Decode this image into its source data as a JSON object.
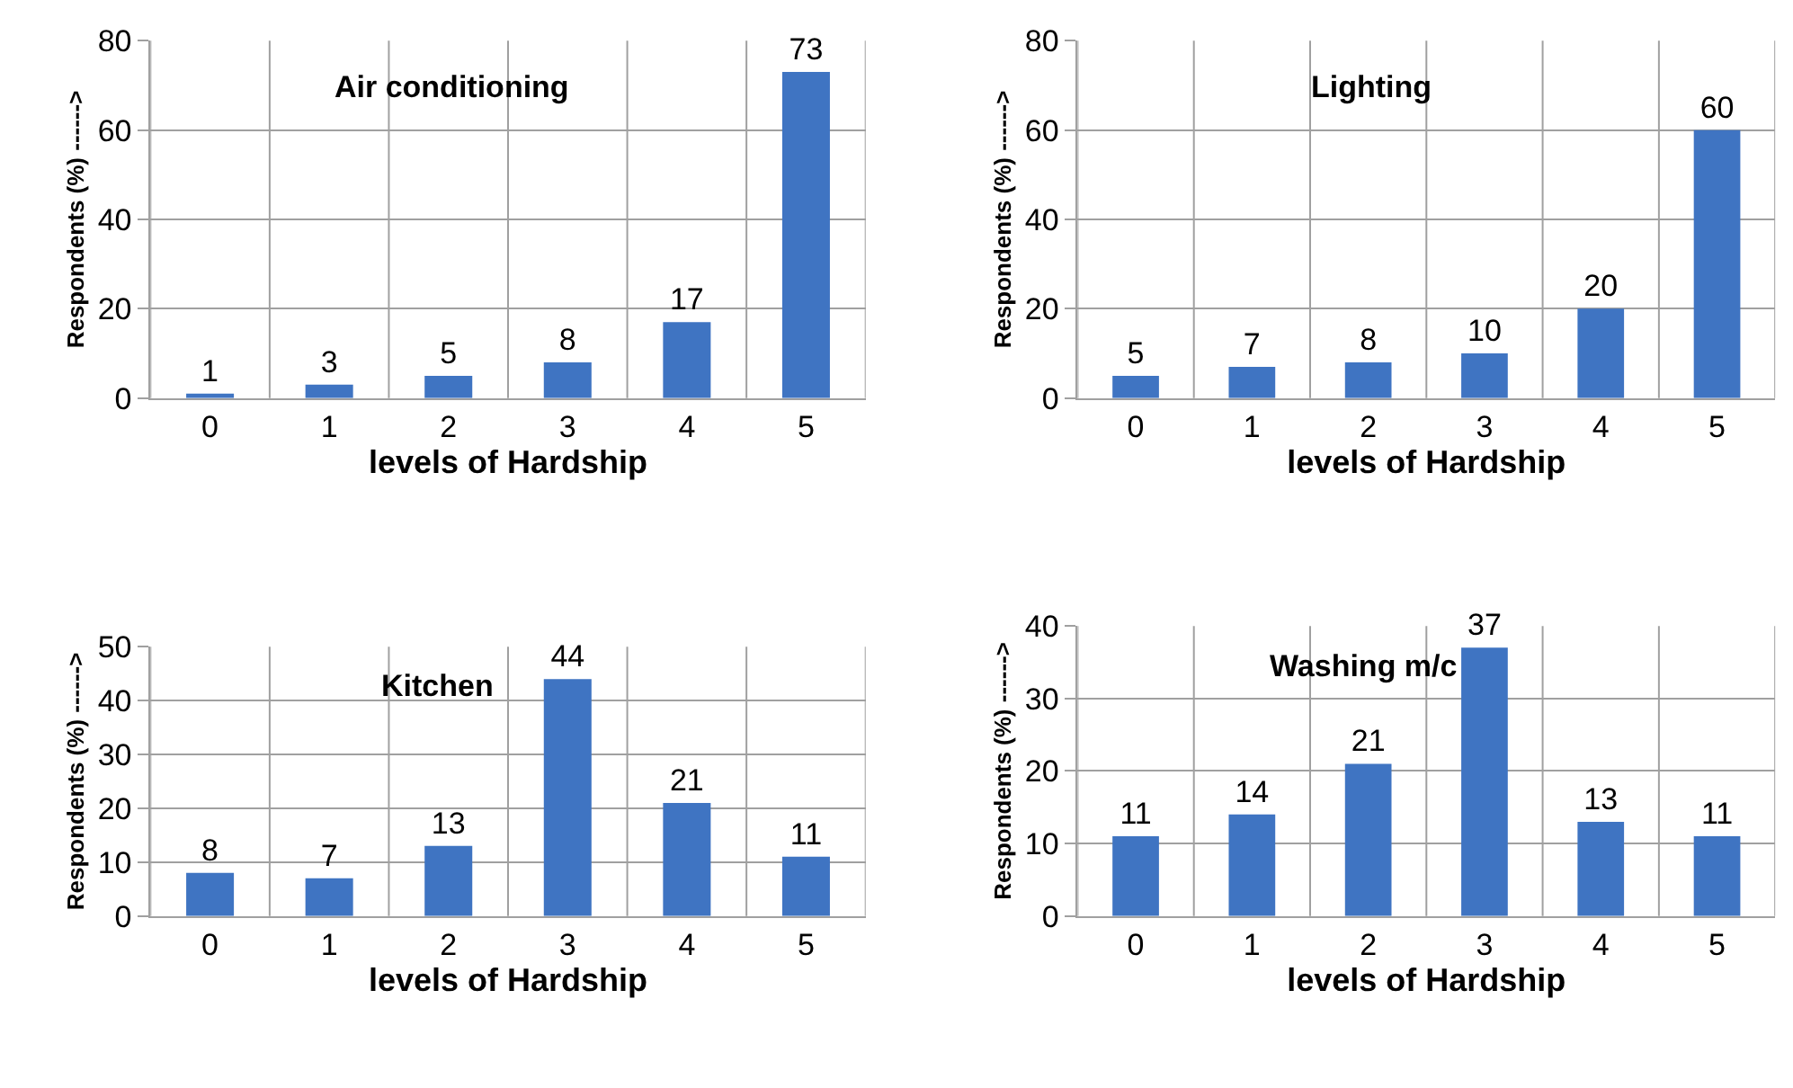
{
  "chart_data": [
    {
      "type": "bar",
      "title": "Air conditioning",
      "xlabel": "levels of Hardship",
      "ylabel": "Respondents (%) ------>",
      "categories": [
        "0",
        "1",
        "2",
        "3",
        "4",
        "5"
      ],
      "values": [
        1,
        3,
        5,
        8,
        17,
        73
      ],
      "color": "#3f74c2",
      "ylim": [
        0,
        80
      ],
      "yticks": [
        0,
        20,
        40,
        60,
        80
      ],
      "grid": true,
      "data_labels": true
    },
    {
      "type": "bar",
      "title": "Lighting",
      "xlabel": "levels of Hardship",
      "ylabel": "Respondents (%) ------>",
      "categories": [
        "0",
        "1",
        "2",
        "3",
        "4",
        "5"
      ],
      "values": [
        5,
        7,
        8,
        10,
        20,
        60
      ],
      "color": "#3f74c2",
      "ylim": [
        0,
        80
      ],
      "yticks": [
        0,
        20,
        40,
        60,
        80
      ],
      "grid": true,
      "data_labels": true
    },
    {
      "type": "bar",
      "title": "Kitchen",
      "xlabel": "levels of Hardship",
      "ylabel": "Respondents (%) ------>",
      "categories": [
        "0",
        "1",
        "2",
        "3",
        "4",
        "5"
      ],
      "values": [
        8,
        7,
        13,
        44,
        21,
        11
      ],
      "color": "#3f74c2",
      "ylim": [
        0,
        50
      ],
      "yticks": [
        0,
        10,
        20,
        30,
        40,
        50
      ],
      "grid": true,
      "data_labels": true
    },
    {
      "type": "bar",
      "title": "Washing m/c",
      "xlabel": "levels of Hardship",
      "ylabel": "Respondents (%) ------>",
      "categories": [
        "0",
        "1",
        "2",
        "3",
        "4",
        "5"
      ],
      "values": [
        11,
        14,
        21,
        37,
        13,
        11
      ],
      "color": "#3f74c2",
      "ylim": [
        0,
        40
      ],
      "yticks": [
        0,
        10,
        20,
        30,
        40
      ],
      "grid": true,
      "data_labels": true
    }
  ]
}
